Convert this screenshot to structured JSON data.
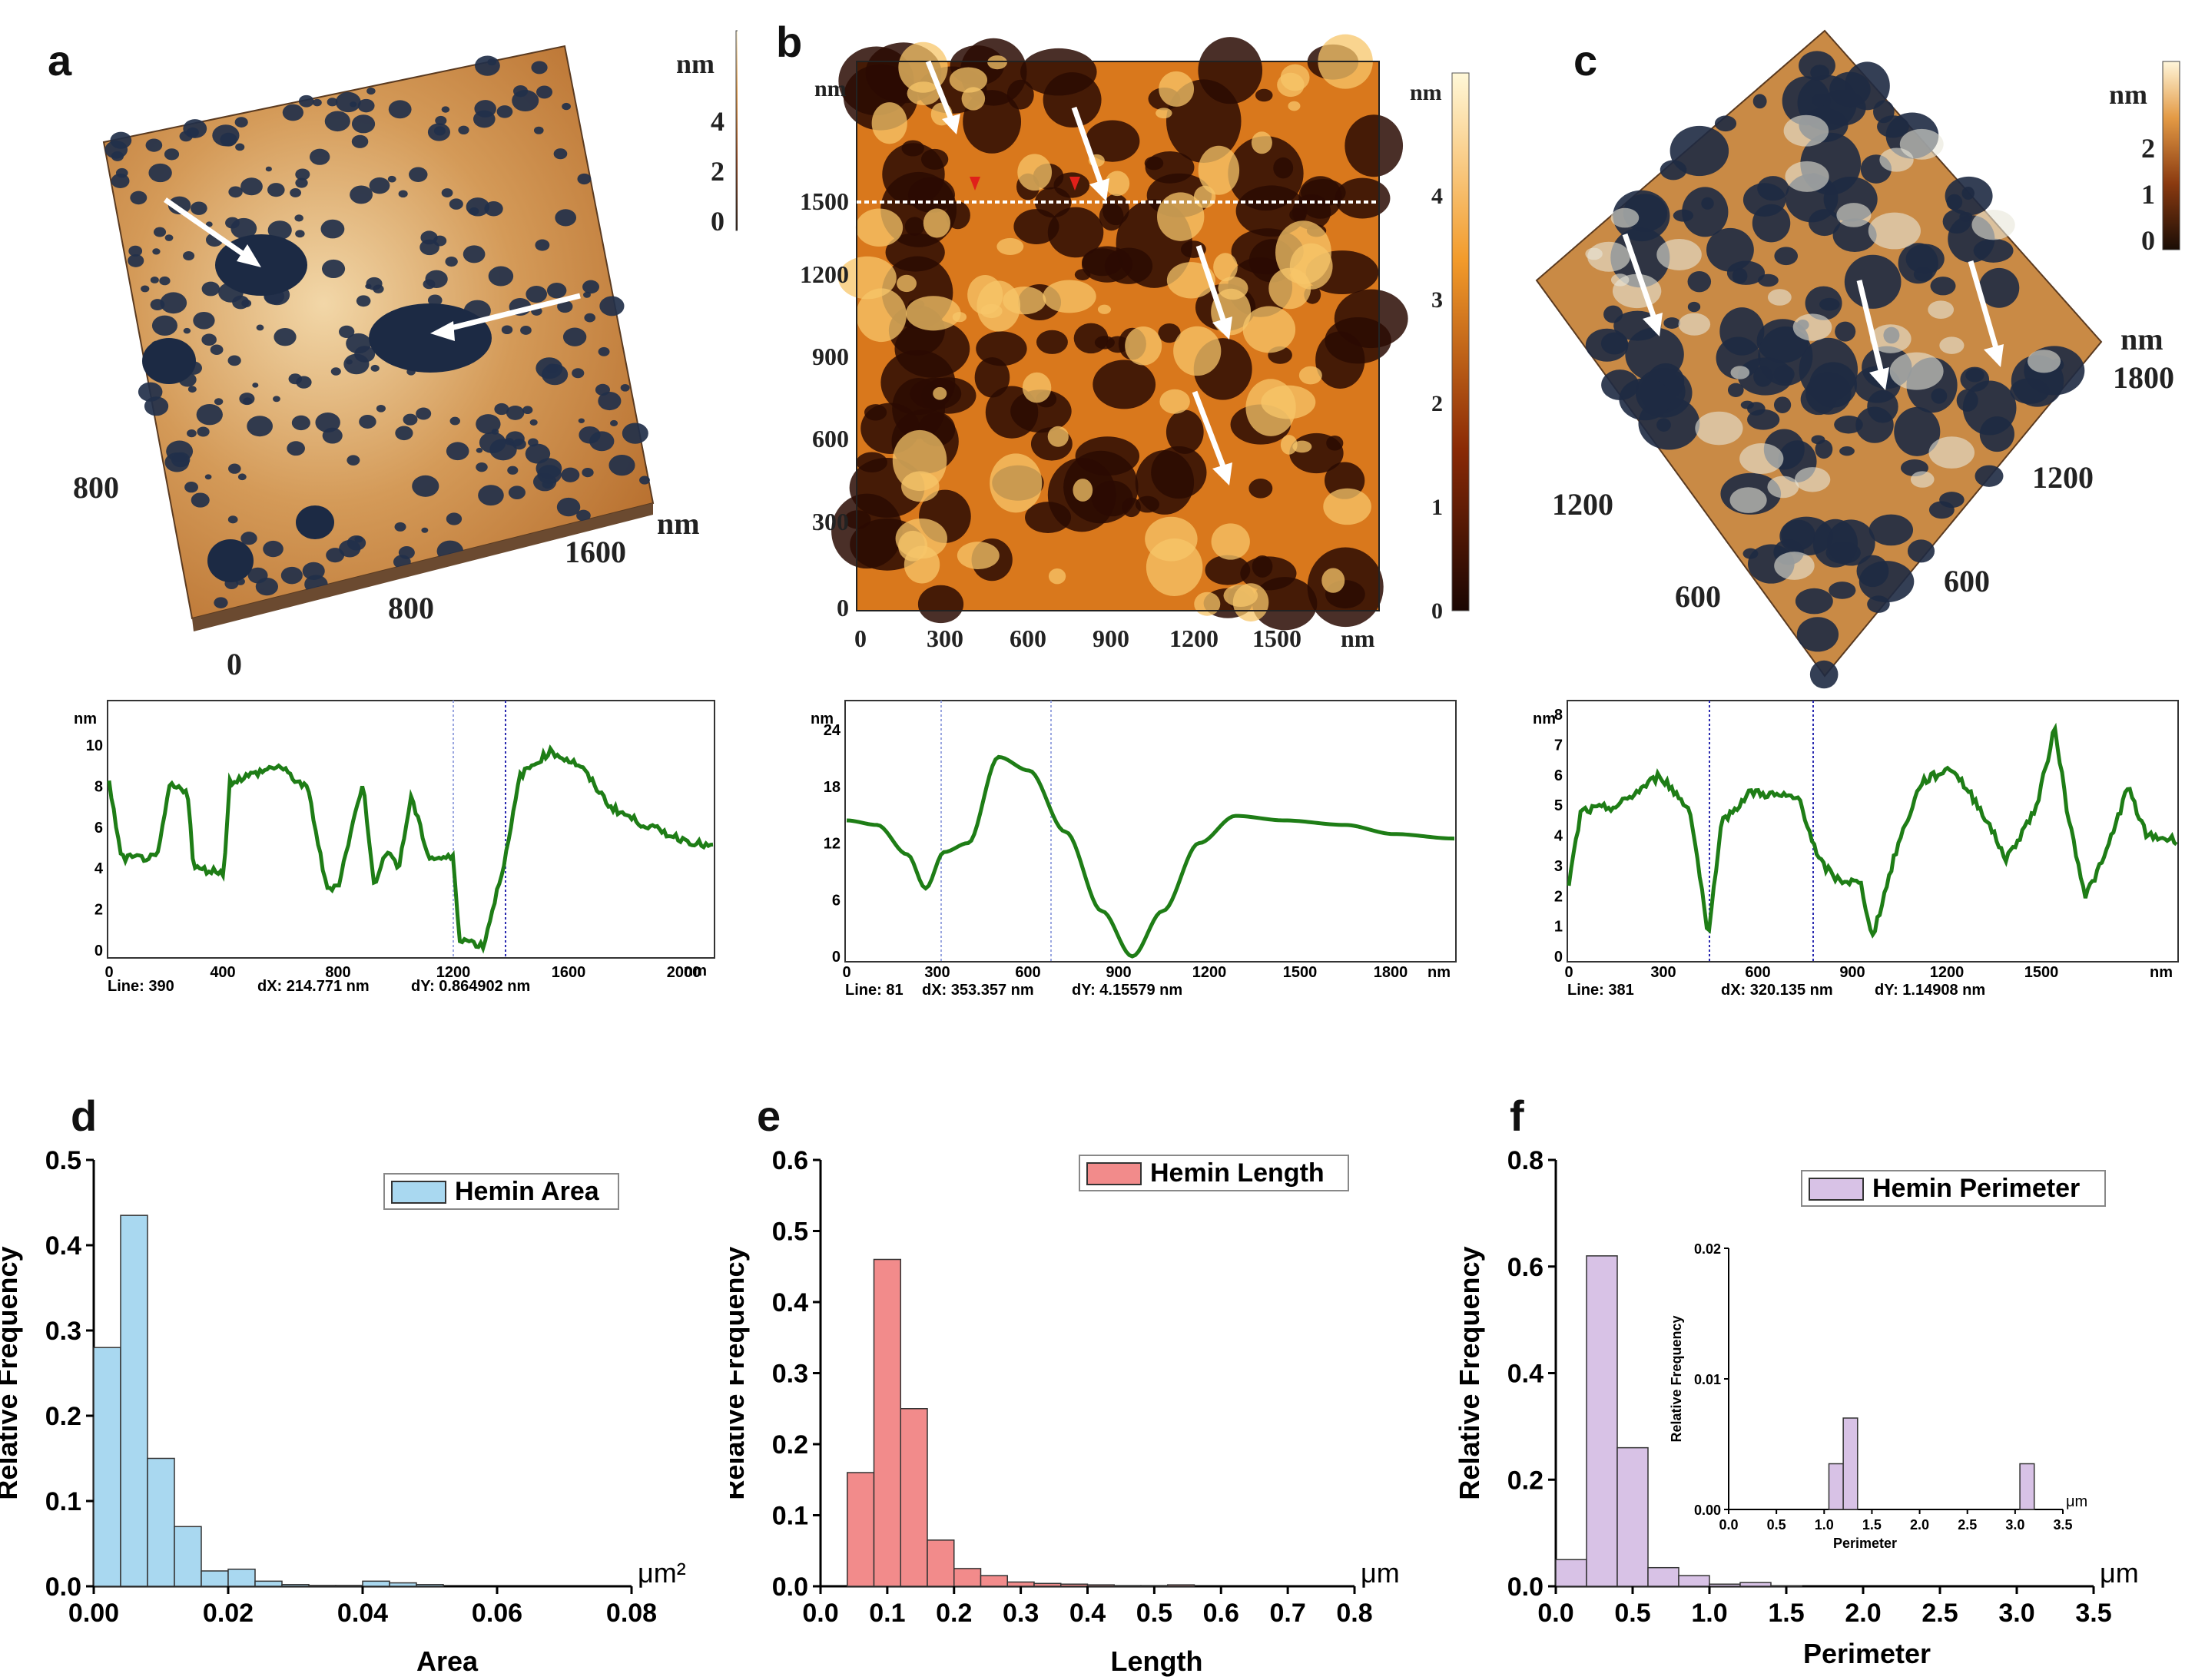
{
  "panel_labels": {
    "a": "a",
    "b": "b",
    "c": "c",
    "d": "d",
    "e": "e",
    "f": "f"
  },
  "afm_a": {
    "colorbar": {
      "unit": "nm",
      "ticks": [
        "4",
        "2",
        "0"
      ]
    },
    "axis_labels": [
      "800",
      "1600",
      "nm",
      "800",
      "0"
    ]
  },
  "afm_b": {
    "y_unit": "nm",
    "y_ticks": [
      "1500",
      "1200",
      "900",
      "600",
      "300",
      "0"
    ],
    "x_ticks": [
      "0",
      "300",
      "600",
      "900",
      "1200",
      "1500"
    ],
    "x_unit": "nm",
    "colorbar": {
      "unit": "nm",
      "ticks": [
        "4",
        "3",
        "2",
        "1",
        "0"
      ]
    }
  },
  "afm_c": {
    "colorbar": {
      "unit": "nm",
      "ticks": [
        "2",
        "1",
        "0"
      ]
    },
    "axis_labels": [
      "nm",
      "1800",
      "1200",
      "600",
      "1200",
      "600"
    ]
  },
  "profile_a": {
    "y_unit": "nm",
    "y_ticks": [
      "10",
      "8",
      "6",
      "4",
      "2",
      "0"
    ],
    "x_ticks": [
      "0",
      "400",
      "800",
      "1200",
      "1600",
      "2000"
    ],
    "x_unit": "nm",
    "footer": {
      "line": "Line: 390",
      "dx": "dX: 214.771 nm",
      "dy": "dY: 0.864902 nm"
    }
  },
  "profile_b": {
    "y_unit": "nm",
    "y_ticks": [
      "24",
      "18",
      "12",
      "6",
      "0"
    ],
    "x_ticks": [
      "0",
      "300",
      "600",
      "900",
      "1200",
      "1500",
      "1800"
    ],
    "x_unit": "nm",
    "footer": {
      "line": "Line: 81",
      "dx": "dX: 353.357 nm",
      "dy": "dY: 4.15579 nm"
    }
  },
  "profile_c": {
    "y_unit": "nm",
    "y_ticks": [
      "8",
      "7",
      "6",
      "5",
      "4",
      "3",
      "2",
      "1",
      "0"
    ],
    "x_ticks": [
      "0",
      "300",
      "600",
      "900",
      "1200",
      "1500"
    ],
    "x_unit": "nm",
    "footer": {
      "line": "Line: 381",
      "dx": "dX: 320.135 nm",
      "dy": "dY: 1.14908 nm"
    }
  },
  "colors": {
    "profile": "#1e7d16",
    "area": "#a9d8f0",
    "length": "#f28b8b",
    "perimeter": "#d8c2e6"
  },
  "chart_data": [
    {
      "type": "bar",
      "title": "",
      "xlabel": "Area",
      "ylabel": "Relative Frequency",
      "x_unit": "μm²",
      "legend": "Hemin Area",
      "legend_position": "top-right",
      "xlim": [
        0,
        0.08
      ],
      "ylim": [
        0,
        0.5
      ],
      "x_ticks": [
        "0.00",
        "0.02",
        "0.04",
        "0.06",
        "0.08"
      ],
      "y_ticks": [
        "0.0",
        "0.1",
        "0.2",
        "0.3",
        "0.4",
        "0.5"
      ],
      "bin_width": 0.004,
      "bin_start": [
        0,
        0.004,
        0.008,
        0.012,
        0.016,
        0.02,
        0.024,
        0.028,
        0.032,
        0.036,
        0.04,
        0.044,
        0.048
      ],
      "values": [
        0.28,
        0.435,
        0.15,
        0.07,
        0.018,
        0.02,
        0.006,
        0.002,
        0.001,
        0.001,
        0.006,
        0.004,
        0.002
      ]
    },
    {
      "type": "bar",
      "title": "",
      "xlabel": "Length",
      "ylabel": "Relative Frequency",
      "x_unit": "μm",
      "legend": "Hemin Length",
      "legend_position": "top-right",
      "xlim": [
        0,
        0.8
      ],
      "ylim": [
        0,
        0.6
      ],
      "x_ticks": [
        "0.0",
        "0.1",
        "0.2",
        "0.3",
        "0.4",
        "0.5",
        "0.6",
        "0.7",
        "0.8"
      ],
      "y_ticks": [
        "0.0",
        "0.1",
        "0.2",
        "0.3",
        "0.4",
        "0.5",
        "0.6"
      ],
      "bin_width": 0.04,
      "bin_start": [
        0.04,
        0.08,
        0.12,
        0.16,
        0.2,
        0.24,
        0.28,
        0.32,
        0.36,
        0.4,
        0.44,
        0.48,
        0.52
      ],
      "values": [
        0.16,
        0.46,
        0.25,
        0.065,
        0.025,
        0.015,
        0.006,
        0.004,
        0.003,
        0.002,
        0.001,
        0.001,
        0.002
      ]
    },
    {
      "type": "bar",
      "title": "",
      "xlabel": "Perimeter",
      "ylabel": "Relative Frequency",
      "x_unit": "μm",
      "legend": "Hemin Perimeter",
      "legend_position": "top-right",
      "xlim": [
        0,
        3.5
      ],
      "ylim": [
        0,
        0.8
      ],
      "x_ticks": [
        "0.0",
        "0.5",
        "1.0",
        "1.5",
        "2.0",
        "2.5",
        "3.0",
        "3.5"
      ],
      "y_ticks": [
        "0.0",
        "0.2",
        "0.4",
        "0.6",
        "0.8"
      ],
      "bin_width": 0.2,
      "bin_start": [
        0.0,
        0.2,
        0.4,
        0.6,
        0.8,
        1.0,
        1.2,
        1.4
      ],
      "values": [
        0.05,
        0.62,
        0.26,
        0.035,
        0.02,
        0.004,
        0.007,
        0.001
      ],
      "inset": {
        "xlabel": "Perimeter",
        "ylabel": "Relative Frequency",
        "x_unit": "μm",
        "xlim": [
          0,
          3.5
        ],
        "ylim": [
          0,
          0.02
        ],
        "x_ticks": [
          "0.0",
          "0.5",
          "1.0",
          "1.5",
          "2.0",
          "2.5",
          "3.0",
          "3.5"
        ],
        "y_ticks": [
          "0.00",
          "0.01",
          "0.02"
        ],
        "bin_width": 0.15,
        "bin_start": [
          1.05,
          1.2,
          3.05
        ],
        "values": [
          0.0035,
          0.007,
          0.0035
        ]
      }
    }
  ]
}
